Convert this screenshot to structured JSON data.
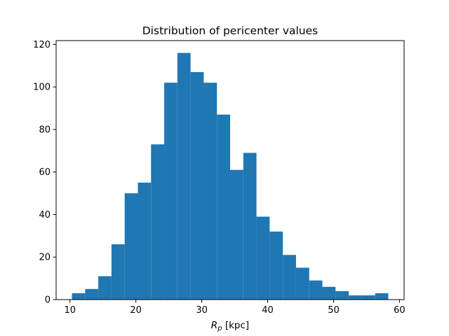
{
  "chart_data": {
    "type": "bar",
    "subtype": "histogram",
    "title": "Distribution of pericenter values",
    "xlabel_main": "R",
    "xlabel_sub": "p",
    "xlabel_rest": " [kpc]",
    "ylabel": "",
    "bin_edges": [
      10.3,
      12.3,
      14.3,
      16.3,
      18.3,
      20.3,
      22.3,
      24.3,
      26.3,
      28.3,
      30.3,
      32.3,
      34.3,
      36.3,
      38.3,
      40.3,
      42.3,
      44.3,
      46.3,
      48.3,
      50.3,
      52.3,
      54.3,
      56.3,
      58.3
    ],
    "counts": [
      3,
      5,
      11,
      26,
      50,
      55,
      73,
      102,
      116,
      107,
      102,
      87,
      61,
      69,
      39,
      32,
      21,
      15,
      9,
      6,
      4,
      2,
      2,
      3
    ],
    "xlim": [
      7.9,
      60.7
    ],
    "ylim": [
      0,
      121.8
    ],
    "xticks": [
      10,
      20,
      30,
      40,
      50,
      60
    ],
    "xtick_labels": [
      "10",
      "20",
      "30",
      "40",
      "50",
      "60"
    ],
    "yticks": [
      0,
      20,
      40,
      60,
      80,
      100,
      120
    ],
    "ytick_labels": [
      "0",
      "20",
      "40",
      "60",
      "80",
      "100",
      "120"
    ],
    "bar_color": "#1f77b4",
    "grid": false,
    "legend": "none"
  }
}
